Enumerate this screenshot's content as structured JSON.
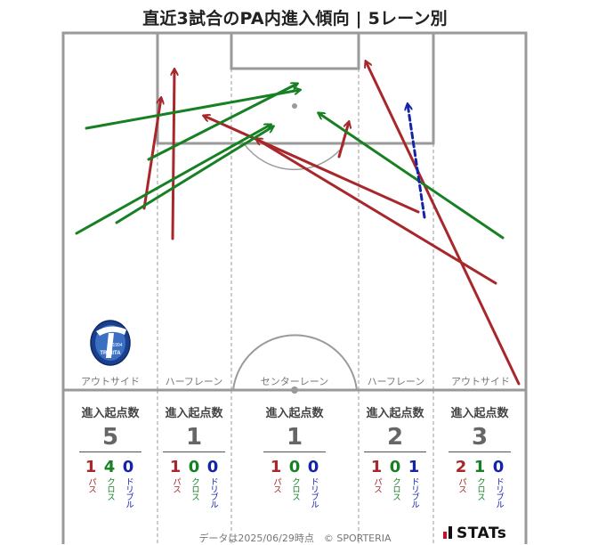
{
  "title": "直近3試合のPA内進入傾向 | 5レーン別",
  "lanes": [
    {
      "label": "アウトサイド",
      "stat_header": "進入起点数",
      "total": "5",
      "pass": "1",
      "cross": "4",
      "dribble": "0"
    },
    {
      "label": "ハーフレーン",
      "stat_header": "進入起点数",
      "total": "1",
      "pass": "1",
      "cross": "0",
      "dribble": "0"
    },
    {
      "label": "センターレーン",
      "stat_header": "進入起点数",
      "total": "1",
      "pass": "1",
      "cross": "0",
      "dribble": "0"
    },
    {
      "label": "ハーフレーン",
      "stat_header": "進入起点数",
      "total": "2",
      "pass": "1",
      "cross": "0",
      "dribble": "1"
    },
    {
      "label": "アウトサイド",
      "stat_header": "進入起点数",
      "total": "3",
      "pass": "2",
      "cross": "1",
      "dribble": "0"
    }
  ],
  "legend": {
    "pass": "パス",
    "cross": "クロス",
    "dribble": "ドリブル"
  },
  "colors": {
    "pass": "#a8272a",
    "cross": "#168023",
    "dribble": "#1424a8",
    "line": "#9a9a9a"
  },
  "logo": {
    "text": "TRINITA",
    "year": "1994",
    "icon": "club-crest-icon"
  },
  "footer": "データは2025/06/29時点　© SPORTERIA",
  "brand": "STATs"
}
